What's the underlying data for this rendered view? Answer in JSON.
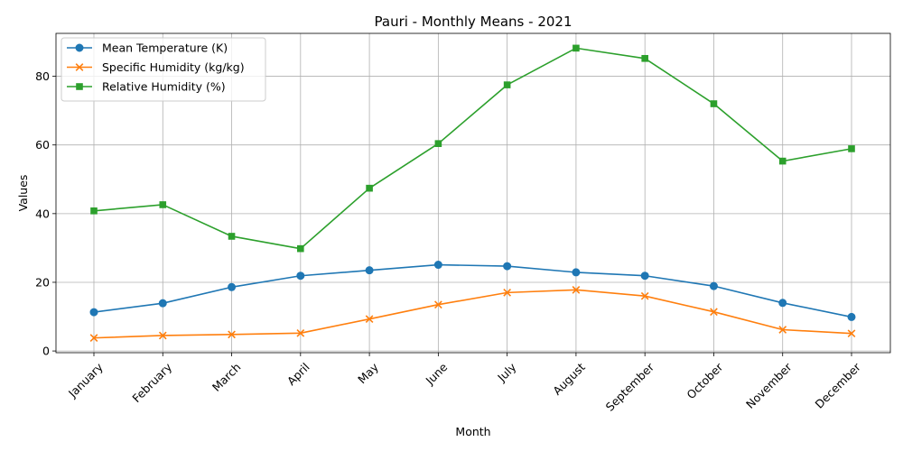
{
  "chart_data": {
    "type": "line",
    "title": "Pauri - Monthly Means - 2021",
    "xlabel": "Month",
    "ylabel": "Values",
    "categories": [
      "January",
      "February",
      "March",
      "April",
      "May",
      "June",
      "July",
      "August",
      "September",
      "October",
      "November",
      "December"
    ],
    "yticks": [
      "0",
      "20",
      "40",
      "60",
      "80"
    ],
    "ylim": [
      -0.5,
      92.5
    ],
    "grid": true,
    "legend_position": "upper-left",
    "series": [
      {
        "name": "Mean Temperature (K)",
        "color": "#1f77b4",
        "marker": "circle",
        "values": [
          11.3,
          13.9,
          18.6,
          21.9,
          23.5,
          25.1,
          24.7,
          22.9,
          21.9,
          18.9,
          14.0,
          9.9
        ]
      },
      {
        "name": "Specific Humidity (kg/kg)",
        "color": "#ff7f0e",
        "marker": "x",
        "values": [
          3.8,
          4.5,
          4.8,
          5.2,
          9.3,
          13.5,
          17.0,
          17.8,
          16.0,
          11.4,
          6.2,
          5.1
        ]
      },
      {
        "name": "Relative Humidity (%)",
        "color": "#2ca02c",
        "marker": "square",
        "values": [
          40.8,
          42.6,
          33.4,
          29.8,
          47.4,
          60.4,
          77.5,
          88.2,
          85.2,
          72.0,
          55.3,
          58.9
        ]
      }
    ]
  }
}
